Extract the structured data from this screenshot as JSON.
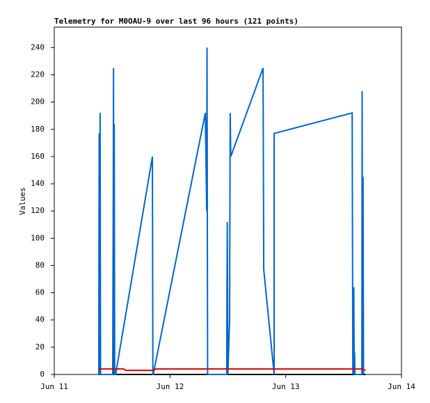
{
  "chart_data": {
    "type": "line",
    "title": "Telemetry for M0OAU-9 over last 96 hours (121 points)",
    "y_label": "Values",
    "xlim": [
      0,
      3
    ],
    "xticks": [
      {
        "value": 0,
        "label": "Jun 11"
      },
      {
        "value": 1,
        "label": "Jun 12"
      },
      {
        "value": 2,
        "label": "Jun 13"
      },
      {
        "value": 3,
        "label": "Jun 14"
      }
    ],
    "ylim": [
      0,
      255
    ],
    "yticks": [
      0,
      20,
      40,
      60,
      80,
      100,
      120,
      140,
      160,
      180,
      200,
      220,
      240
    ],
    "grid": false,
    "series": [
      {
        "color": "#000000",
        "x": [
          0.385,
          2.69
        ],
        "values": [
          0,
          0
        ]
      },
      {
        "color": "#0066cc",
        "x": [
          0.385,
          0.386,
          0.388,
          0.392,
          0.396,
          0.4,
          0.505,
          0.507,
          0.509,
          0.512,
          0.515,
          0.518,
          0.522,
          0.53,
          0.848,
          0.852,
          0.855,
          1.305,
          1.317,
          1.32,
          1.325,
          1.49,
          1.492,
          1.495,
          1.5,
          1.515,
          1.52,
          1.525,
          1.804,
          1.81,
          1.9,
          1.9,
          2.574,
          2.58,
          2.588,
          2.592,
          2.595,
          2.598,
          2.658,
          2.66,
          2.664,
          2.668,
          2.672
        ],
        "values": [
          0,
          88,
          177,
          0,
          192,
          0,
          0,
          56,
          112,
          225,
          0,
          184,
          0,
          0,
          160,
          0,
          0,
          192,
          120,
          240,
          0,
          0,
          56,
          112,
          0,
          40,
          192,
          160,
          225,
          77,
          0,
          177,
          192,
          0,
          64,
          0,
          16,
          0,
          0,
          208,
          0,
          145,
          0
        ]
      },
      {
        "color": "#dd0000",
        "x": [
          0.385,
          0.6,
          0.62,
          0.85,
          0.88,
          2.66,
          2.69
        ],
        "values": [
          4,
          4,
          3,
          3,
          4,
          4,
          3
        ]
      }
    ]
  }
}
